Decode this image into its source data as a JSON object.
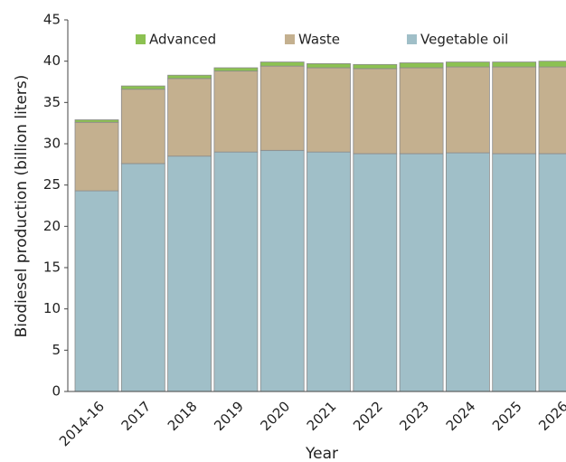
{
  "chart_data": {
    "type": "stacked_bar",
    "y_label": "Biodiesel production (billion liters)",
    "x_label": "Year",
    "categories": [
      "2014-16",
      "2017",
      "2018",
      "2019",
      "2020",
      "2021",
      "2022",
      "2023",
      "2024",
      "2025",
      "2026"
    ],
    "series": [
      {
        "name": "Vegetable oil",
        "color": "#a0bfc8",
        "values": [
          24.3,
          27.6,
          28.5,
          29.0,
          29.2,
          29.0,
          28.8,
          28.8,
          28.9,
          28.8,
          28.8
        ]
      },
      {
        "name": "Waste",
        "color": "#c4b08f",
        "values": [
          8.3,
          9.0,
          9.4,
          9.8,
          10.2,
          10.2,
          10.3,
          10.4,
          10.4,
          10.5,
          10.5
        ]
      },
      {
        "name": "Advanced",
        "color": "#8cc152",
        "values": [
          0.3,
          0.4,
          0.4,
          0.4,
          0.5,
          0.5,
          0.5,
          0.6,
          0.6,
          0.6,
          0.7
        ]
      }
    ],
    "legend_order": [
      "Advanced",
      "Waste",
      "Vegetable oil"
    ],
    "ylim": [
      0,
      45
    ],
    "yticks": [
      0,
      5,
      10,
      15,
      20,
      25,
      30,
      35,
      40,
      45
    ],
    "legend": "top"
  }
}
